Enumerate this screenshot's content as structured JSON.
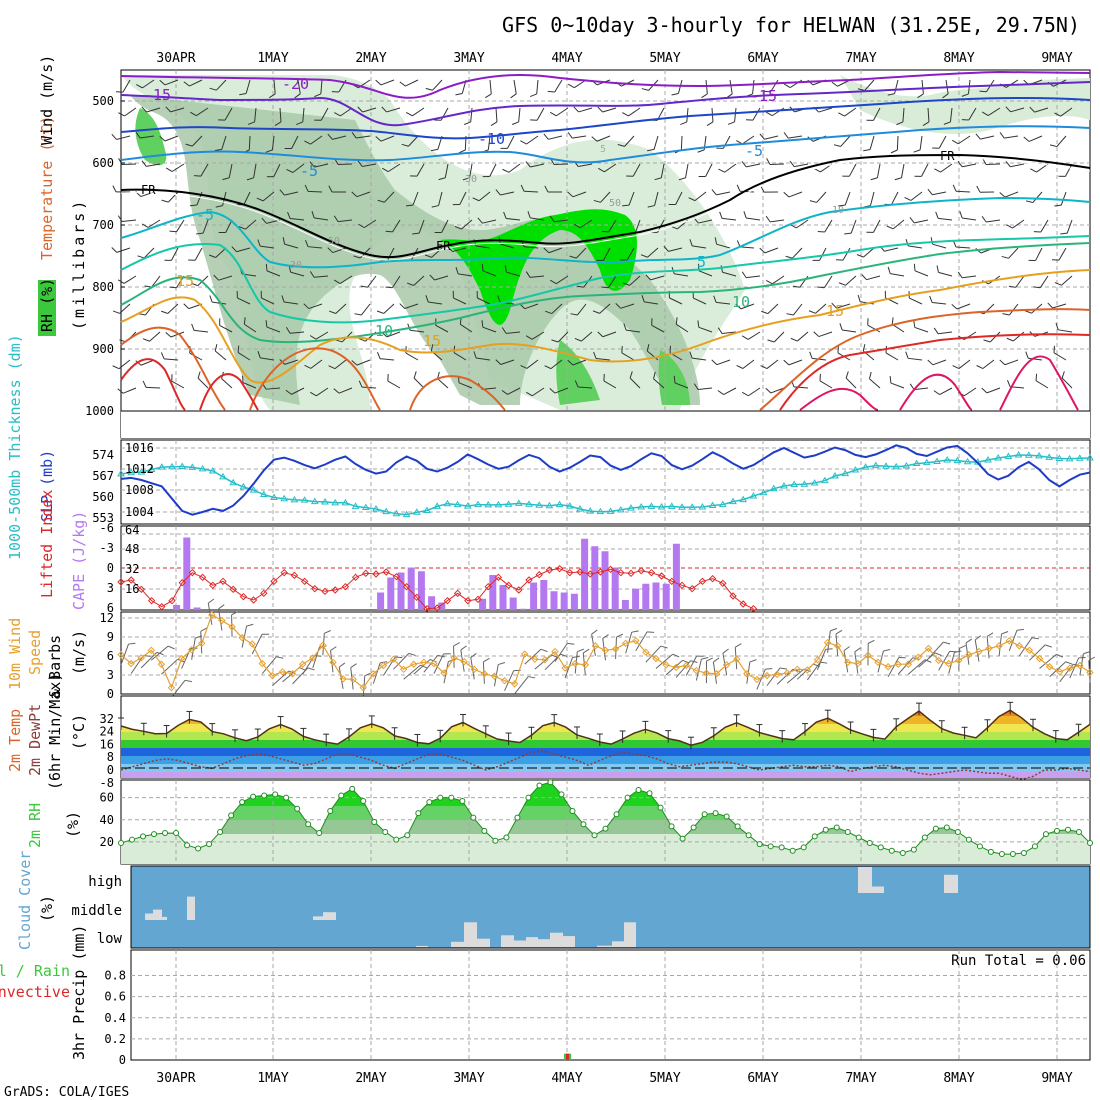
{
  "header": {
    "title": "GFS 0~10day 3-hourly for HELWAN (31.25E, 29.75N)",
    "footer": "GrADS: COLA/IGES"
  },
  "dates": [
    "30APR",
    "1MAY",
    "2MAY",
    "3MAY",
    "4MAY",
    "5MAY",
    "6MAY",
    "7MAY",
    "8MAY",
    "9MAY"
  ],
  "colors": {
    "grid": "#a8a8a8",
    "rh": "#3cc83c",
    "slp": "#1e3cc8",
    "thickness": "#28bec8",
    "cape": "#b478f0",
    "lifted": "#dc2828",
    "wind10": "#e6a030",
    "cloud_bg": "#64a6d2",
    "cloud_bar": "#dcdcdc",
    "precip_total": "#3cc83c",
    "precip_conv": "#dc2828"
  },
  "panels": {
    "upper": {
      "label_rh": "RH (%)",
      "label_temp": "Temperature (°C)",
      "label_wind": "Wind (m/s)",
      "label_units": "(millibars)",
      "yticks": [
        "500",
        "600",
        "700",
        "800",
        "900",
        "1000"
      ],
      "contour_labels": [
        "-15",
        "-20",
        "-15",
        "-10",
        "-5",
        "-5",
        "FR",
        "FR",
        "FR",
        "-5",
        "5",
        "5",
        "10",
        "10",
        "15",
        "15",
        "15",
        "30",
        "30",
        "50",
        "50",
        "10"
      ]
    },
    "slp": {
      "label_thickness": "1000-500mb Thickness (dm)",
      "label_slp": "SLP (mb)",
      "yticks_left": [
        "574",
        "567",
        "560",
        "553"
      ],
      "yticks_right": [
        "1016",
        "1012",
        "1008",
        "1004"
      ]
    },
    "cape": {
      "label_li": "Lifted Index",
      "label_cape": "CAPE (J/kg)",
      "yticks_left": [
        "-6",
        "-3",
        "0",
        "3",
        "6"
      ],
      "yticks_right": [
        "64",
        "48",
        "32",
        "16"
      ]
    },
    "wind10": {
      "label_line1": "10m Wind",
      "label_line2": "Speed",
      "label_line3": "& Barbs",
      "label_units": "(m/s)",
      "yticks": [
        "12",
        "9",
        "6",
        "3",
        "0"
      ]
    },
    "temp2m": {
      "label_line1": "2m Temp",
      "label_line2": "2m DewPt",
      "label_line3": "(6hr Min/Max)",
      "label_units": "(°C)",
      "yticks": [
        "32",
        "24",
        "16",
        "8",
        "0",
        "-8"
      ]
    },
    "rh2m": {
      "label": "2m RH",
      "label_units": "(%)",
      "yticks": [
        "60",
        "40",
        "20"
      ]
    },
    "cloud": {
      "label": "Cloud Cover",
      "label_units": "(%)",
      "levels": [
        "high",
        "middle",
        "low"
      ]
    },
    "precip": {
      "label_total": "Total / Rain",
      "label_conv": "Convective",
      "label_units": "3hr Precip (mm)",
      "yticks": [
        "0.8",
        "0.6",
        "0.4",
        "0.2",
        "0"
      ],
      "run_total": "Run Total = 0.06"
    }
  },
  "chart_data": [
    {
      "type": "line",
      "name": "SLP",
      "x_unit": "3-hourly steps from 29APR 21Z",
      "values": [
        1010.2,
        1010.4,
        1010.0,
        1009.4,
        1008.8,
        1006.5,
        1004.2,
        1003.5,
        1004.0,
        1004.6,
        1004.2,
        1005.2,
        1007.0,
        1009.3,
        1011.8,
        1013.8,
        1014.2,
        1013.6,
        1012.8,
        1012.2,
        1012.9,
        1013.8,
        1014.4,
        1013.0,
        1011.9,
        1011.2,
        1011.6,
        1013.3,
        1014.4,
        1013.6,
        1012.1,
        1011.6,
        1012.3,
        1013.4,
        1014.8,
        1013.9,
        1012.9,
        1012.1,
        1012.5,
        1013.7,
        1014.7,
        1014.1,
        1012.5,
        1011.6,
        1012.3,
        1013.4,
        1014.6,
        1014.3,
        1012.7,
        1011.9,
        1012.6,
        1013.9,
        1015.0,
        1014.5,
        1012.8,
        1012.0,
        1012.7,
        1013.9,
        1015.2,
        1014.3,
        1013.1,
        1012.1,
        1012.8,
        1014.0,
        1015.2,
        1016.0,
        1015.1,
        1014.2,
        1014.6,
        1015.3,
        1016.1,
        1015.6,
        1014.7,
        1014.3,
        1014.8,
        1015.6,
        1016.5,
        1016.0,
        1014.9,
        1014.5,
        1015.3,
        1016.1,
        1016.4,
        1015.0,
        1013.2,
        1011.1,
        1010.1,
        1010.8,
        1012.4,
        1013.4,
        1012.0,
        1010.0,
        1008.8,
        1010.0,
        1011.0,
        1011.4
      ]
    },
    {
      "type": "line",
      "name": "1000-500mb Thickness",
      "values": [
        567.6,
        568.0,
        568.2,
        569.1,
        569.9,
        570.0,
        570.1,
        569.8,
        569.3,
        568.6,
        566.6,
        564.6,
        563.2,
        562.1,
        560.6,
        559.6,
        559.2,
        558.8,
        558.7,
        558.2,
        558.1,
        557.8,
        557.8,
        556.6,
        556.2,
        555.7,
        554.8,
        554.1,
        553.8,
        554.6,
        555.2,
        556.6,
        557.5,
        557.2,
        556.7,
        557.2,
        557.1,
        557.1,
        557.3,
        557.6,
        557.3,
        557.0,
        556.8,
        557.2,
        556.7,
        555.7,
        555.0,
        554.8,
        554.9,
        555.4,
        556.0,
        556.4,
        556.6,
        556.4,
        556.6,
        556.3,
        556.3,
        556.4,
        556.9,
        557.2,
        558.2,
        558.9,
        560.1,
        561.2,
        562.6,
        563.5,
        564.0,
        564.1,
        564.5,
        565.3,
        566.9,
        567.7,
        568.9,
        569.9,
        570.4,
        570.2,
        570.0,
        570.3,
        571.1,
        571.4,
        571.8,
        572.3,
        572.1,
        571.7,
        571.6,
        572.3,
        573.0,
        573.5,
        574.0,
        573.9,
        573.7,
        573.2,
        572.8,
        572.7,
        572.9,
        573.0
      ]
    },
    {
      "type": "bar",
      "name": "CAPE",
      "nonzero": [
        [
          5,
          4
        ],
        [
          6,
          58
        ],
        [
          7,
          2
        ],
        [
          25,
          14
        ],
        [
          26,
          26
        ],
        [
          27,
          30
        ],
        [
          28,
          34
        ],
        [
          29,
          31
        ],
        [
          30,
          11
        ],
        [
          31,
          6
        ],
        [
          35,
          9
        ],
        [
          36,
          28
        ],
        [
          37,
          20
        ],
        [
          38,
          10
        ],
        [
          39,
          1
        ],
        [
          40,
          22
        ],
        [
          41,
          24
        ],
        [
          42,
          15
        ],
        [
          43,
          14
        ],
        [
          44,
          13
        ],
        [
          45,
          57
        ],
        [
          46,
          51
        ],
        [
          47,
          47
        ],
        [
          48,
          34
        ],
        [
          49,
          8
        ],
        [
          50,
          17
        ],
        [
          51,
          21
        ],
        [
          52,
          22
        ],
        [
          53,
          21
        ],
        [
          54,
          53
        ]
      ]
    },
    {
      "type": "line",
      "name": "Lifted Index",
      "values": [
        2.1,
        1.8,
        3.2,
        4.9,
        5.8,
        4.9,
        2.2,
        0.7,
        1.4,
        2.6,
        2.0,
        3.2,
        4.3,
        4.8,
        3.8,
        2.0,
        0.7,
        1.1,
        2.0,
        3.1,
        3.5,
        3.3,
        2.8,
        1.4,
        0.8,
        0.9,
        0.6,
        1.3,
        2.8,
        4.4,
        6.1,
        6.0,
        4.9,
        3.8,
        4.9,
        4.7,
        2.8,
        1.4,
        2.6,
        3.3,
        1.8,
        1.0,
        0.3,
        0.1,
        0.7,
        0.6,
        0.9,
        0.6,
        0.2,
        0.7,
        0.8,
        0.4,
        0.7,
        1.2,
        2.0,
        2.6,
        3.1,
        2.0,
        1.6,
        2.3,
        4.2,
        5.4,
        6.1
      ]
    },
    {
      "type": "line",
      "name": "10m Wind Speed",
      "values": [
        6.2,
        4.8,
        5.7,
        6.9,
        4.7,
        1.0,
        5.6,
        7.0,
        8.0,
        12.5,
        11.6,
        10.6,
        8.9,
        7.9,
        4.8,
        2.9,
        3.5,
        3.2,
        4.7,
        5.7,
        7.7,
        5.0,
        2.4,
        2.3,
        1.0,
        3.2,
        4.5,
        5.5,
        3.9,
        4.7,
        5.0,
        4.8,
        3.3,
        5.7,
        5.1,
        3.9,
        3.2,
        2.8,
        2.1,
        1.6,
        6.3,
        5.5,
        5.4,
        6.7,
        4.1,
        4.8,
        4.6,
        7.6,
        6.9,
        7.1,
        8.0,
        8.4,
        6.6,
        5.6,
        4.6,
        4.2,
        4.5,
        3.7,
        3.3,
        3.2,
        4.6,
        5.5,
        3.2,
        2.3,
        2.9,
        3.1,
        3.3,
        3.9,
        3.8,
        5.4,
        8.1,
        7.6,
        5.0,
        4.8,
        6.1,
        5.0,
        4.3,
        4.7,
        4.7,
        5.8,
        7.2,
        5.3,
        4.8,
        5.3,
        6.2,
        6.7,
        7.2,
        7.6,
        8.4,
        7.6,
        6.9,
        5.6,
        4.3,
        3.5,
        4.1,
        4.5,
        3.4
      ]
    },
    {
      "type": "area",
      "name": "2m Temp",
      "values": [
        27.5,
        25.4,
        24.2,
        22.7,
        22.8,
        27.8,
        31.6,
        30.0,
        24.0,
        22.6,
        20.1,
        18.3,
        20.6,
        25.7,
        28.4,
        25.6,
        21.0,
        18.9,
        17.4,
        16.2,
        20.7,
        26.4,
        28.8,
        26.4,
        21.4,
        19.7,
        17.2,
        16.4,
        19.8,
        27.0,
        29.7,
        26.0,
        22.6,
        19.4,
        18.1,
        17.2,
        21.7,
        27.7,
        29.6,
        26.8,
        21.9,
        19.8,
        17.5,
        16.2,
        19.4,
        23.0,
        25.4,
        23.2,
        19.6,
        18.2,
        15.5,
        17.3,
        21.4,
        26.7,
        29.5,
        26.6,
        23.4,
        21.5,
        19.6,
        18.9,
        24.0,
        30.0,
        32.4,
        28.9,
        25.0,
        22.6,
        20.4,
        19.3,
        27.0,
        32.0,
        36.8,
        31.0,
        25.8,
        23.1,
        21.7,
        20.1,
        26.4,
        33.4,
        37.3,
        32.6,
        26.7,
        22.7,
        19.6,
        18.9,
        23.6,
        28.5
      ]
    },
    {
      "type": "line",
      "name": "2m DewPt",
      "values": [
        0,
        2,
        4,
        6,
        7,
        6,
        4,
        2,
        1,
        4,
        7,
        9,
        10,
        9,
        7,
        5,
        3,
        4,
        7,
        10,
        10,
        8,
        6,
        3,
        1,
        4,
        7,
        10,
        10,
        8,
        6,
        3,
        0,
        2,
        5,
        8,
        11,
        12,
        10,
        8,
        6,
        3,
        6,
        9,
        11,
        10,
        9,
        7,
        4,
        2,
        3,
        4,
        5,
        5,
        4,
        2,
        0,
        1,
        2,
        3,
        2,
        2,
        3,
        2,
        -1,
        1,
        2,
        3,
        2,
        0,
        -2,
        -3,
        -2,
        -1,
        0,
        -1,
        -2,
        -2,
        -4,
        -6,
        -4,
        0,
        0,
        1,
        0,
        -1
      ]
    },
    {
      "type": "area",
      "name": "2m RH",
      "values": [
        19,
        22,
        25,
        27,
        28,
        28,
        17,
        14,
        18,
        29,
        44,
        56,
        61,
        62,
        63,
        60,
        50,
        36,
        28,
        48,
        62,
        68,
        57,
        38,
        29,
        22,
        26,
        46,
        56,
        60,
        60,
        57,
        42,
        30,
        21,
        24,
        42,
        60,
        71,
        74,
        63,
        48,
        36,
        26,
        32,
        45,
        60,
        67,
        64,
        51,
        34,
        23,
        33,
        45,
        46,
        43,
        34,
        26,
        18,
        16,
        15,
        12,
        15,
        25,
        31,
        33,
        29,
        24,
        19,
        15,
        12,
        10,
        13,
        24,
        32,
        33,
        29,
        22,
        16,
        11,
        9,
        9,
        10,
        16,
        27,
        30,
        31,
        29,
        19
      ]
    },
    {
      "type": "bar",
      "name": "Cloud Cover",
      "levels": [
        "high",
        "middle",
        "low"
      ],
      "segments": [
        {
          "level": "middle",
          "x0": 14,
          "x1": 22,
          "value": 25
        },
        {
          "level": "middle",
          "x0": 22,
          "x1": 31,
          "value": 40
        },
        {
          "level": "middle",
          "x0": 31,
          "x1": 36,
          "value": 12
        },
        {
          "level": "middle",
          "x0": 56,
          "x1": 64,
          "value": 90
        },
        {
          "level": "middle",
          "x0": 182,
          "x1": 192,
          "value": 14
        },
        {
          "level": "middle",
          "x0": 192,
          "x1": 205,
          "value": 30
        },
        {
          "level": "high",
          "x0": 727,
          "x1": 741,
          "value": 100
        },
        {
          "level": "high",
          "x0": 741,
          "x1": 753,
          "value": 25
        },
        {
          "level": "high",
          "x0": 813,
          "x1": 827,
          "value": 70
        },
        {
          "level": "low",
          "x0": 285,
          "x1": 297,
          "value": 4
        },
        {
          "level": "low",
          "x0": 320,
          "x1": 333,
          "value": 20
        },
        {
          "level": "low",
          "x0": 333,
          "x1": 346,
          "value": 95
        },
        {
          "level": "low",
          "x0": 346,
          "x1": 359,
          "value": 32
        },
        {
          "level": "low",
          "x0": 370,
          "x1": 383,
          "value": 45
        },
        {
          "level": "low",
          "x0": 383,
          "x1": 395,
          "value": 25
        },
        {
          "level": "low",
          "x0": 395,
          "x1": 407,
          "value": 38
        },
        {
          "level": "low",
          "x0": 407,
          "x1": 419,
          "value": 30
        },
        {
          "level": "low",
          "x0": 419,
          "x1": 432,
          "value": 55
        },
        {
          "level": "low",
          "x0": 432,
          "x1": 444,
          "value": 42
        },
        {
          "level": "low",
          "x0": 466,
          "x1": 481,
          "value": 5
        },
        {
          "level": "low",
          "x0": 481,
          "x1": 493,
          "value": 22
        },
        {
          "level": "low",
          "x0": 493,
          "x1": 505,
          "value": 95
        }
      ]
    },
    {
      "type": "bar",
      "name": "3hr Precip",
      "values": [
        {
          "date": "4MAY",
          "total": 0.06,
          "convective": 0.06
        }
      ]
    }
  ]
}
